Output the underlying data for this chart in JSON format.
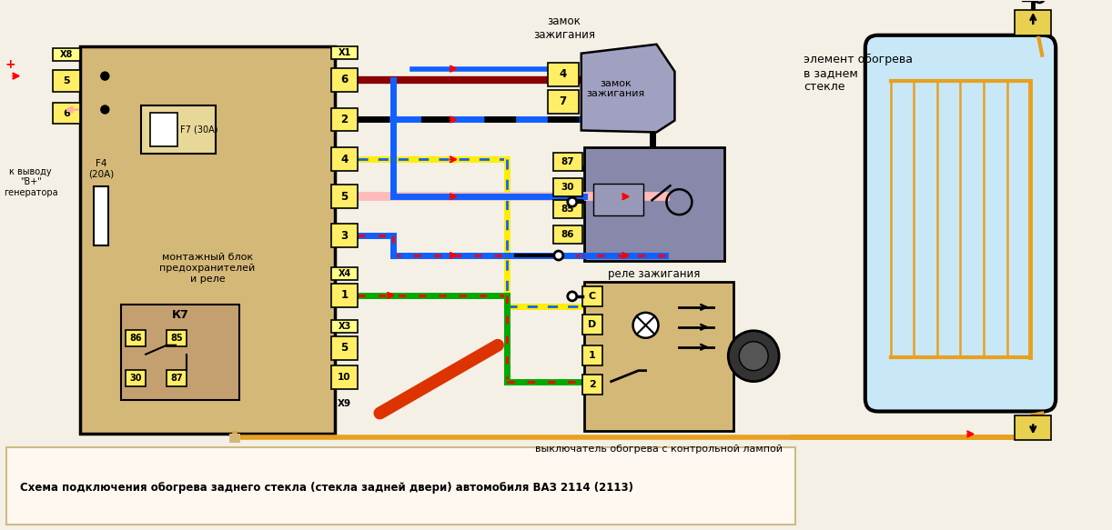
{
  "bg_color": "#f5f0e5",
  "tan_color": "#d4b878",
  "tan_dark": "#c8a060",
  "orange_wire": "#e8a020",
  "blue_wire": "#1060ff",
  "dark_red_wire": "#8b0000",
  "red_wire": "#ff0000",
  "green_wire": "#00aa00",
  "yellow_wire": "#ffee00",
  "pink_wire": "#ffbbbb",
  "black_wire": "#000000",
  "relay_bg": "#8888aa",
  "glass_bg": "#c8e8f8",
  "footer_bg": "#fff8f0",
  "title_caption": "Схема подключения обогрева заднего стекла (стекла задней двери) автомобиля ВАЗ 2114 (2113)",
  "label_zamok": "замок\nзажигания",
  "label_element": "элемент обогрева\nв заднем\nстекле",
  "label_montazh": "монтажный блок\nпредохранителей\nи реле",
  "label_relay": "реле зажигания",
  "label_vykl": "выключатель обогрева с контрольной лампой",
  "label_kvyvodu": "к выводу\n\"В+\"\nгенератора",
  "label_f4": "F4\n(20А)",
  "label_f7": "F7 (30А)",
  "label_k7": "К7"
}
